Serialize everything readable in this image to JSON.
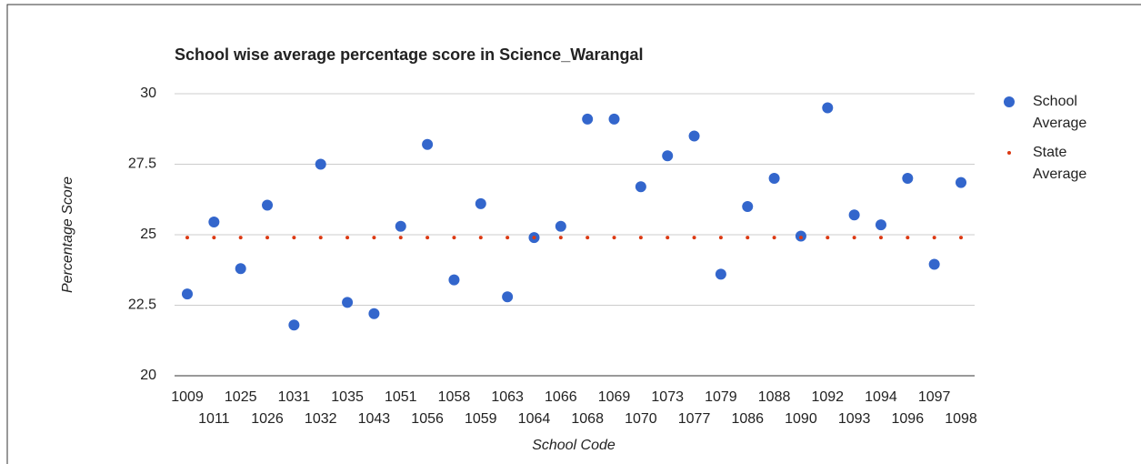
{
  "chart_data": {
    "type": "scatter",
    "title": "School wise average percentage score in Science_Warangal",
    "x_label": "School Code",
    "y_label": "Percentage Score",
    "categories": [
      "1009",
      "1011",
      "1025",
      "1026",
      "1031",
      "1032",
      "1035",
      "1043",
      "1051",
      "1056",
      "1058",
      "1059",
      "1063",
      "1064",
      "1066",
      "1068",
      "1069",
      "1070",
      "1073",
      "1077",
      "1079",
      "1086",
      "1088",
      "1090",
      "1092",
      "1093",
      "1094",
      "1096",
      "1097",
      "1098"
    ],
    "series": [
      {
        "name": "School Average",
        "color": "#3366cc",
        "values": [
          22.9,
          25.45,
          23.8,
          26.05,
          21.8,
          27.5,
          22.6,
          22.2,
          25.3,
          28.2,
          23.4,
          26.1,
          22.8,
          24.9,
          25.3,
          29.1,
          29.1,
          26.7,
          27.8,
          28.5,
          23.6,
          26.0,
          27.0,
          24.95,
          29.5,
          25.7,
          25.35,
          27.0,
          23.95,
          26.85
        ]
      },
      {
        "name": "State Average",
        "color": "#dc3912",
        "values": [
          24.9,
          24.9,
          24.9,
          24.9,
          24.9,
          24.9,
          24.9,
          24.9,
          24.9,
          24.9,
          24.9,
          24.9,
          24.9,
          24.9,
          24.9,
          24.9,
          24.9,
          24.9,
          24.9,
          24.9,
          24.9,
          24.9,
          24.9,
          24.9,
          24.9,
          24.9,
          24.9,
          24.9,
          24.9,
          24.9
        ]
      }
    ],
    "ylim": [
      20,
      30
    ],
    "yticks": [
      20,
      22.5,
      25,
      27.5,
      30
    ],
    "grid": true,
    "legend": "right"
  }
}
